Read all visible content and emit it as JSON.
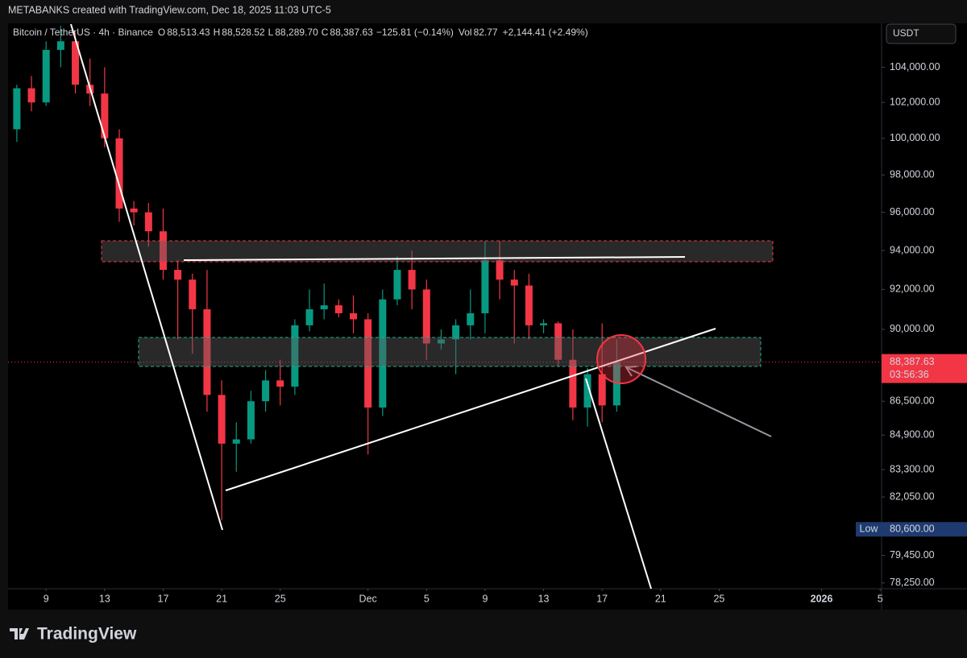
{
  "header": {
    "attribution": "METABANKS created with TradingView.com, Dec 18, 2025 11:03 UTC-5"
  },
  "legend": {
    "symbol": "Bitcoin / TetherUS · 4h · Binance",
    "ohlc": [
      {
        "label": "O",
        "value": "88,513.43"
      },
      {
        "label": "H",
        "value": "88,528.52"
      },
      {
        "label": "L",
        "value": "88,289.70"
      },
      {
        "label": "C",
        "value": "88,387.63"
      }
    ],
    "change": "−125.81 (−0.14%)",
    "vol_label": "Vol",
    "vol": "82.77",
    "vol_change": "+2,144.41 (+2.49%)"
  },
  "currency": "USDT",
  "logo": "TradingView",
  "chart_data": {
    "type": "candlestick",
    "log_scale": true,
    "up_color": "#089981",
    "down_color": "#f23645",
    "x": [
      7,
      8,
      9,
      10,
      11,
      12,
      13,
      14,
      15,
      16,
      17,
      18,
      19,
      20,
      21,
      22,
      23,
      24,
      25,
      26,
      27,
      28,
      29,
      30,
      31,
      32,
      33,
      34,
      35,
      36,
      37,
      38,
      39,
      40,
      41,
      42,
      43,
      44,
      45,
      46,
      47,
      48
    ],
    "open": [
      100500,
      102800,
      102000,
      105000,
      105500,
      103000,
      102500,
      100000,
      96200,
      96000,
      95000,
      93000,
      92500,
      91000,
      86800,
      84500,
      84700,
      86500,
      87500,
      87200,
      90200,
      91000,
      91200,
      90800,
      90500,
      86200,
      91500,
      93000,
      92000,
      89300,
      89500,
      90200,
      90800,
      93500,
      92500,
      92200,
      90200,
      90300,
      88500,
      86200,
      87800,
      86300
    ],
    "high": [
      103000,
      103500,
      105500,
      106400,
      106000,
      104500,
      104000,
      100500,
      96600,
      96500,
      96200,
      93500,
      92800,
      93000,
      87500,
      85500,
      87000,
      88000,
      88500,
      90500,
      92000,
      92300,
      91500,
      91700,
      90800,
      92000,
      93700,
      94000,
      92500,
      90000,
      90500,
      92000,
      94500,
      94500,
      93000,
      92800,
      90500,
      90400,
      90000,
      88100,
      90300,
      89500
    ],
    "low": [
      99800,
      101500,
      101800,
      104000,
      102500,
      101800,
      99500,
      95500,
      95300,
      94200,
      92500,
      89500,
      88800,
      86000,
      81000,
      83200,
      84500,
      86000,
      86300,
      86800,
      89900,
      90500,
      90600,
      89800,
      84000,
      85800,
      91200,
      91000,
      88500,
      89000,
      87800,
      89500,
      89800,
      91500,
      89300,
      89500,
      89800,
      88200,
      85600,
      85300,
      85500,
      86000
    ],
    "close": [
      102800,
      102000,
      105000,
      105500,
      103000,
      102500,
      100000,
      96200,
      96000,
      95000,
      93000,
      92500,
      91000,
      86800,
      84500,
      84700,
      86500,
      87500,
      87200,
      90200,
      91000,
      91200,
      90800,
      90500,
      86200,
      91500,
      93000,
      92000,
      89300,
      89500,
      90200,
      90800,
      93500,
      92500,
      92200,
      90200,
      90300,
      88500,
      86200,
      87800,
      86300,
      88387.63
    ],
    "xlim": [
      6.4,
      66.1
    ],
    "xticks": [
      9,
      13,
      17,
      21,
      25,
      {
        "value": 31,
        "label": "Dec"
      },
      {
        "value": 35,
        "label": "5"
      },
      {
        "value": 39,
        "label": "9"
      },
      {
        "value": 43,
        "label": "13"
      },
      {
        "value": 47,
        "label": "17"
      },
      {
        "value": 51,
        "label": "21"
      },
      {
        "value": 55,
        "label": "25"
      },
      {
        "value": 62,
        "label": "2026"
      },
      {
        "value": 66,
        "label": "5"
      }
    ],
    "ylim": [
      78000,
      106500
    ],
    "yticks": [
      {
        "value": 104000,
        "label": "104,000.00"
      },
      {
        "value": 102000,
        "label": "102,000.00"
      },
      {
        "value": 100000,
        "label": "100,000.00"
      },
      {
        "value": 98000,
        "label": "98,000.00"
      },
      {
        "value": 96000,
        "label": "96,000.00"
      },
      {
        "value": 94000,
        "label": "94,000.00"
      },
      {
        "value": 92000,
        "label": "92,000.00"
      },
      {
        "value": 90000,
        "label": "90,000.00"
      },
      {
        "value": 86500,
        "label": "86,500.00"
      },
      {
        "value": 84900,
        "label": "84,900.00"
      },
      {
        "value": 83300,
        "label": "83,300.00"
      },
      {
        "value": 82050,
        "label": "82,050.00"
      },
      {
        "value": 79450,
        "label": "79,450.00"
      },
      {
        "value": 78250,
        "label": "78,250.00"
      }
    ],
    "last_price": {
      "value": 88387.63,
      "label": "88,387.63",
      "countdown": "03:56:36"
    },
    "low_marker": {
      "text": "Low",
      "value": 80600,
      "label": "80,600.00"
    }
  }
}
